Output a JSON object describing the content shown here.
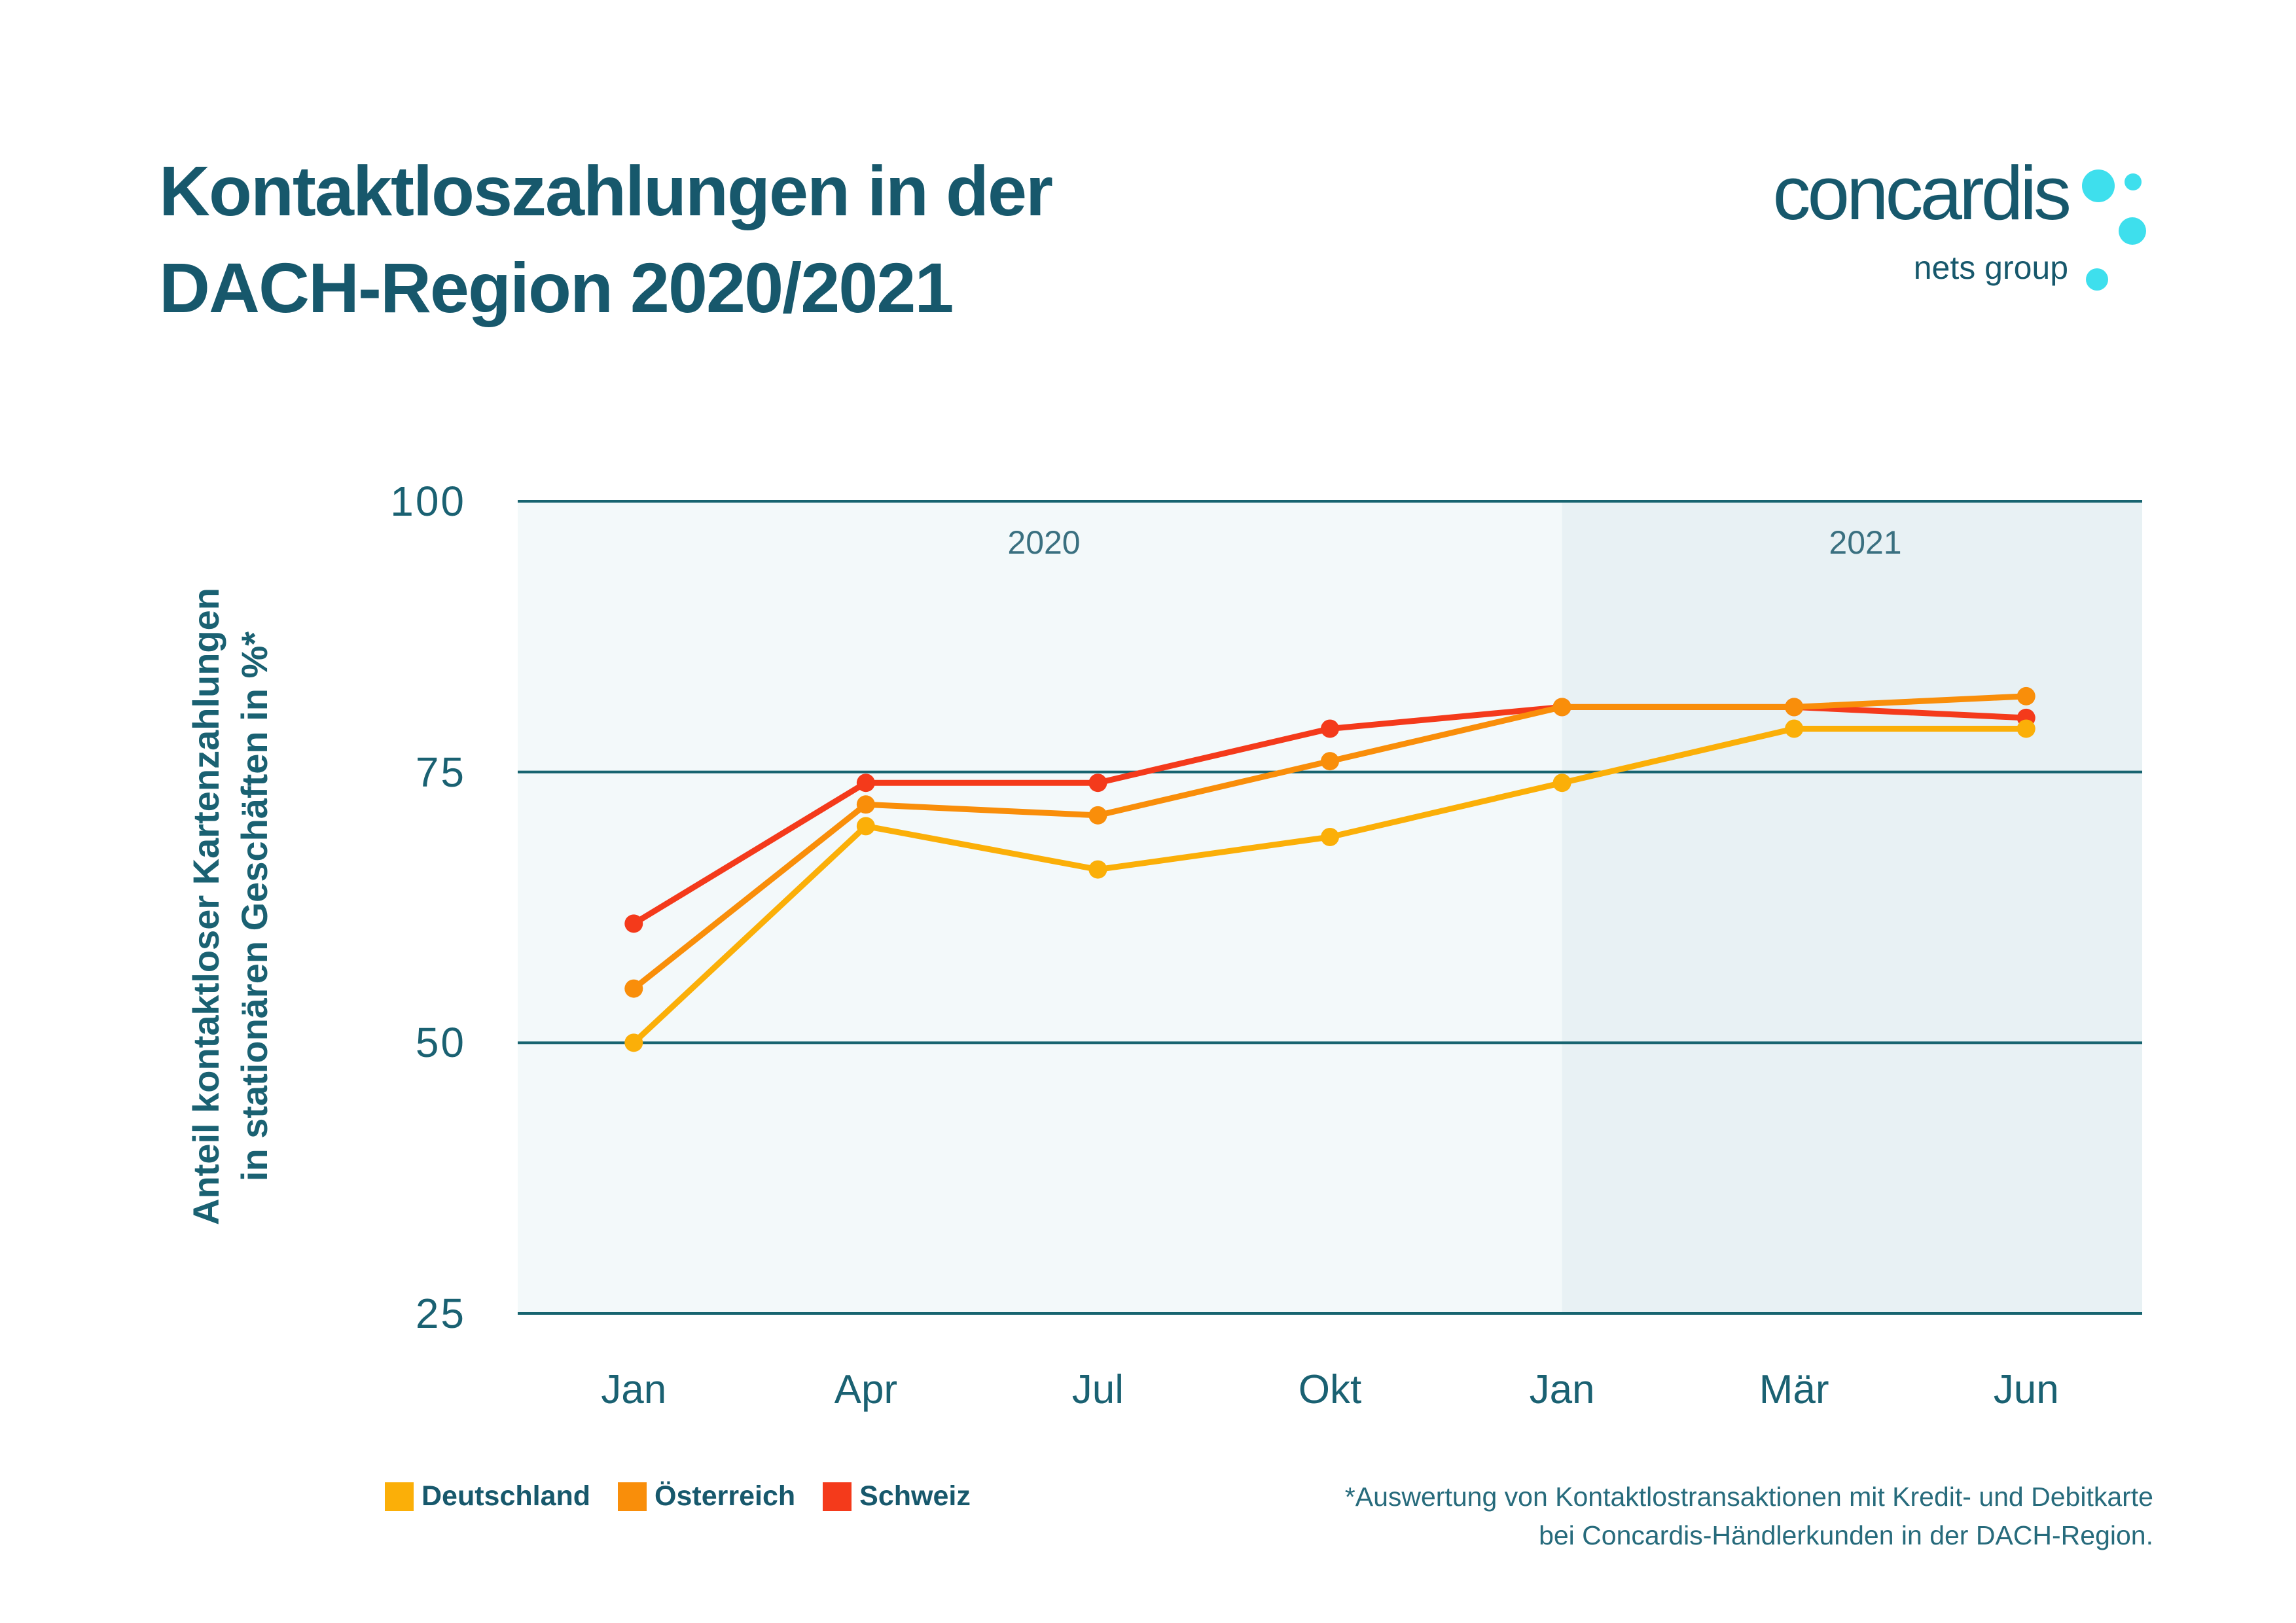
{
  "title": {
    "line1": "Kontaktloszahlungen in der",
    "line2": "DACH-Region 2020/2021"
  },
  "logo": {
    "name": "concardis",
    "subtitle": "nets group",
    "text_color": "#17586C",
    "dot_color": "#3EDFED"
  },
  "y_axis": {
    "title_line1": "Anteil kontaktloser Kartenzahlungen",
    "title_line2": "in stationären Geschäften in %*",
    "ticks": [
      "100",
      "75",
      "50",
      "25"
    ]
  },
  "period_labels": [
    {
      "label": "2020"
    },
    {
      "label": "2021"
    }
  ],
  "footnote": {
    "line1": "*Auswertung von Kontaktlostransaktionen mit Kredit- und Debitkarte",
    "line2": "bei Concardis-Händlerkunden in der DACH-Region."
  },
  "colors": {
    "deutschland": "#FBAF08",
    "oesterreich": "#F98E0A",
    "schweiz": "#F43A1B",
    "grid_line": "#176470",
    "background_2020": "#F3F9FA",
    "background_2021": "#E8F1F4",
    "teal_text": "#17586C"
  },
  "chart_data": {
    "type": "line",
    "title": "Kontaktloszahlungen in der DACH-Region 2020/2021",
    "ylabel": "Anteil kontaktloser Kartenzahlungen in stationären Geschäften in %*",
    "categories": [
      "Jan",
      "Apr",
      "Jul",
      "Okt",
      "Jan",
      "Mär",
      "Jun"
    ],
    "series": [
      {
        "name": "Deutschland",
        "color": "#FBAF08",
        "values": [
          50,
          70,
          66,
          69,
          74,
          79,
          79
        ]
      },
      {
        "name": "Österreich",
        "color": "#F98E0A",
        "values": [
          55,
          72,
          71,
          76,
          81,
          81,
          82
        ]
      },
      {
        "name": "Schweiz",
        "color": "#F43A1B",
        "values": [
          61,
          74,
          74,
          79,
          81,
          81,
          80
        ]
      }
    ],
    "ylim": [
      25,
      100
    ],
    "yticks": [
      25,
      50,
      75,
      100
    ],
    "grid": "horizontal",
    "legend_position": "bottom-left",
    "period_split": {
      "before": "2020",
      "after": "2021",
      "split_at_category_index": 4
    }
  }
}
